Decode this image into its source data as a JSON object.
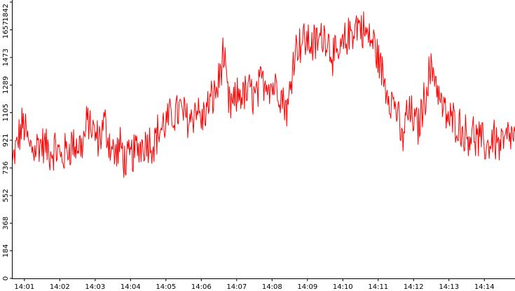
{
  "chart_data": {
    "type": "line",
    "title": "",
    "xlabel": "",
    "ylabel": "",
    "grid": false,
    "legend": "none",
    "ylim": [
      0,
      1842
    ],
    "xlim": [
      "14:00:40",
      "14:14:52"
    ],
    "y_ticks": [
      "0",
      "184",
      "368",
      "552",
      "736",
      "921",
      "1105",
      "1289",
      "1473",
      "1657",
      "1842"
    ],
    "x_ticks": [
      "14:01",
      "14:02",
      "14:03",
      "14:04",
      "14:05",
      "14:06",
      "14:07",
      "14:08",
      "14:09",
      "14:10",
      "14:11",
      "14:12",
      "14:13",
      "14:14"
    ],
    "series": [
      {
        "color": "#ff0000",
        "x_start": "14:00:40",
        "x_end": "14:14:52",
        "sampled_values": [
          760,
          920,
          1040,
          880,
          870,
          900,
          880,
          840,
          870,
          800,
          850,
          900,
          880,
          900,
          1060,
          960,
          920,
          1040,
          900,
          820,
          880,
          760,
          820,
          860,
          900,
          920,
          900,
          980,
          1020,
          1060,
          1100,
          1120,
          1080,
          1060,
          1150,
          1050,
          1130,
          1200,
          1280,
          1500,
          1150,
          1160,
          1240,
          1220,
          1250,
          1200,
          1300,
          1330,
          1280,
          1290,
          1200,
          1120,
          1500,
          1570,
          1590,
          1570,
          1560,
          1600,
          1630,
          1520,
          1450,
          1530,
          1600,
          1660,
          1700,
          1650,
          1600,
          1560,
          1420,
          1300,
          1200,
          1150,
          900,
          1100,
          1080,
          1000,
          1150,
          1350,
          1400,
          1200,
          1100,
          1050,
          1050,
          1000,
          950,
          980,
          920,
          900,
          880,
          950,
          880,
          900,
          950,
          920
        ]
      }
    ]
  }
}
